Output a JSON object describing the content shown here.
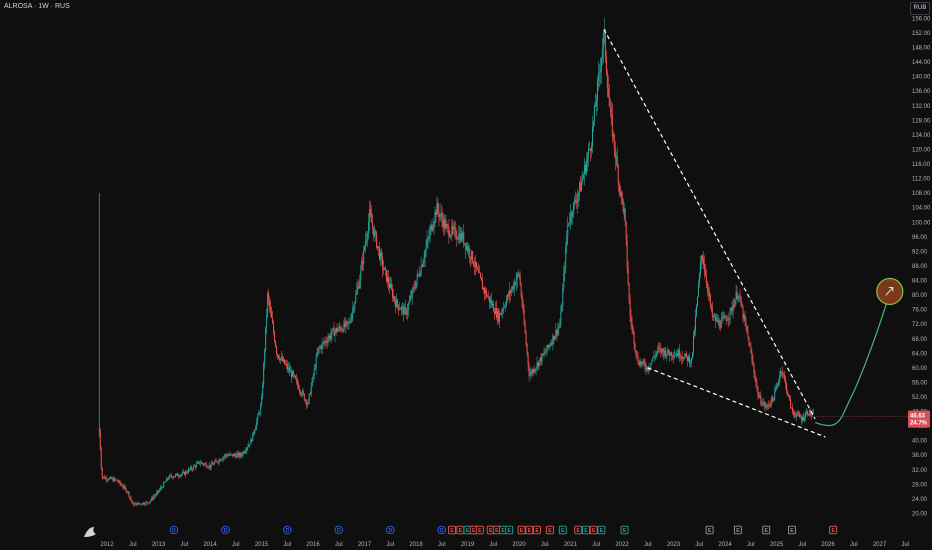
{
  "header": {
    "symbol": "ALROSA · 1W · RUS",
    "currency": "RUB"
  },
  "chart_data": {
    "type": "candlestick",
    "title": "ALROSA · 1W · RUS",
    "y_axis": {
      "position": "right",
      "range": [
        18,
        156
      ],
      "ticks": [
        20,
        24,
        28,
        32,
        36,
        40,
        44,
        48,
        52,
        56,
        60,
        64,
        68,
        72,
        76,
        80,
        84,
        88,
        92,
        96,
        100,
        104,
        108,
        112,
        116,
        120,
        124,
        128,
        132,
        136,
        140,
        144,
        148,
        152,
        156
      ],
      "tick_labels": [
        "20.00",
        "24.00",
        "28.00",
        "32.00",
        "36.00",
        "40.00",
        "44.00",
        "48.00",
        "52.00",
        "56.00",
        "60.00",
        "64.00",
        "68.00",
        "72.00",
        "76.00",
        "80.00",
        "84.00",
        "88.00",
        "92.00",
        "96.00",
        "100.00",
        "104.00",
        "108.00",
        "112.00",
        "116.00",
        "120.00",
        "124.00",
        "128.00",
        "132.00",
        "136.00",
        "140.00",
        "144.00",
        "148.00",
        "152.00",
        "156.00"
      ]
    },
    "x_axis": {
      "ticks": [
        {
          "t": 2012.0,
          "label": "2012"
        },
        {
          "t": 2012.5,
          "label": "Jul"
        },
        {
          "t": 2013.0,
          "label": "2013"
        },
        {
          "t": 2013.5,
          "label": "Jul"
        },
        {
          "t": 2014.0,
          "label": "2014"
        },
        {
          "t": 2014.5,
          "label": "Jul"
        },
        {
          "t": 2015.0,
          "label": "2015"
        },
        {
          "t": 2015.5,
          "label": "Jul"
        },
        {
          "t": 2016.0,
          "label": "2016"
        },
        {
          "t": 2016.5,
          "label": "Jul"
        },
        {
          "t": 2017.0,
          "label": "2017"
        },
        {
          "t": 2017.5,
          "label": "Jul"
        },
        {
          "t": 2018.0,
          "label": "2018"
        },
        {
          "t": 2018.5,
          "label": "Jul"
        },
        {
          "t": 2019.0,
          "label": "2019"
        },
        {
          "t": 2019.5,
          "label": "Jul"
        },
        {
          "t": 2020.0,
          "label": "2020"
        },
        {
          "t": 2020.5,
          "label": "Jul"
        },
        {
          "t": 2021.0,
          "label": "2021"
        },
        {
          "t": 2021.5,
          "label": "Jul"
        },
        {
          "t": 2022.0,
          "label": "2022"
        },
        {
          "t": 2022.5,
          "label": "Jul"
        },
        {
          "t": 2023.0,
          "label": "2023"
        },
        {
          "t": 2023.5,
          "label": "Jul"
        },
        {
          "t": 2024.0,
          "label": "2024"
        },
        {
          "t": 2024.5,
          "label": "Jul"
        },
        {
          "t": 2025.0,
          "label": "2025"
        },
        {
          "t": 2025.5,
          "label": "Jul"
        },
        {
          "t": 2026.0,
          "label": "2026"
        },
        {
          "t": 2026.5,
          "label": "Jul"
        },
        {
          "t": 2027.0,
          "label": "2027"
        },
        {
          "t": 2027.5,
          "label": "Jul"
        }
      ]
    },
    "price_keypoints": [
      [
        2011.85,
        43
      ],
      [
        2011.9,
        30
      ],
      [
        2012.2,
        29
      ],
      [
        2012.4,
        26
      ],
      [
        2012.5,
        22.5
      ],
      [
        2012.8,
        23
      ],
      [
        2013.0,
        26
      ],
      [
        2013.2,
        30
      ],
      [
        2013.5,
        31
      ],
      [
        2013.8,
        34
      ],
      [
        2014.0,
        33
      ],
      [
        2014.3,
        36
      ],
      [
        2014.6,
        36
      ],
      [
        2014.8,
        40
      ],
      [
        2015.0,
        50
      ],
      [
        2015.12,
        80
      ],
      [
        2015.3,
        64
      ],
      [
        2015.6,
        58
      ],
      [
        2015.9,
        50
      ],
      [
        2016.1,
        65
      ],
      [
        2016.4,
        70
      ],
      [
        2016.7,
        72
      ],
      [
        2016.9,
        84
      ],
      [
        2017.1,
        102
      ],
      [
        2017.35,
        88
      ],
      [
        2017.6,
        78
      ],
      [
        2017.8,
        75
      ],
      [
        2018.1,
        88
      ],
      [
        2018.4,
        104
      ],
      [
        2018.6,
        98
      ],
      [
        2018.9,
        96
      ],
      [
        2019.1,
        90
      ],
      [
        2019.3,
        82
      ],
      [
        2019.6,
        74
      ],
      [
        2019.8,
        80
      ],
      [
        2020.0,
        86
      ],
      [
        2020.2,
        58
      ],
      [
        2020.5,
        64
      ],
      [
        2020.8,
        72
      ],
      [
        2020.95,
        100
      ],
      [
        2021.2,
        110
      ],
      [
        2021.4,
        122
      ],
      [
        2021.55,
        140
      ],
      [
        2021.65,
        152
      ],
      [
        2021.75,
        132
      ],
      [
        2021.95,
        110
      ],
      [
        2022.05,
        102
      ],
      [
        2022.15,
        75
      ],
      [
        2022.3,
        62
      ],
      [
        2022.5,
        60
      ],
      [
        2022.7,
        65
      ],
      [
        2022.9,
        64
      ],
      [
        2023.1,
        64
      ],
      [
        2023.35,
        62
      ],
      [
        2023.55,
        92
      ],
      [
        2023.75,
        74
      ],
      [
        2023.9,
        72
      ],
      [
        2024.1,
        75
      ],
      [
        2024.25,
        81
      ],
      [
        2024.45,
        68
      ],
      [
        2024.65,
        52
      ],
      [
        2024.8,
        49
      ],
      [
        2024.95,
        52
      ],
      [
        2025.1,
        60
      ],
      [
        2025.3,
        48
      ],
      [
        2025.5,
        46
      ],
      [
        2025.6,
        48
      ],
      [
        2025.72,
        46.6
      ]
    ],
    "trendlines": [
      {
        "name": "upper-resistance",
        "style": "dashed",
        "from": [
          2021.65,
          153
        ],
        "to": [
          2025.75,
          46
        ]
      },
      {
        "name": "lower-support",
        "style": "dashed",
        "from": [
          2022.5,
          60
        ],
        "to": [
          2025.95,
          41
        ]
      }
    ],
    "projection": {
      "style": "curve",
      "points": [
        [
          2025.75,
          45
        ],
        [
          2026.0,
          44
        ],
        [
          2026.45,
          52
        ],
        [
          2026.85,
          68
        ],
        [
          2027.2,
          81
        ]
      ],
      "target_marker": [
        2027.2,
        81
      ]
    },
    "last_price": {
      "value": 46.6,
      "label": "46.63",
      "change_label": "24.7%",
      "color": "#d84f57"
    },
    "events": [
      {
        "t": 2013.3,
        "type": "D"
      },
      {
        "t": 2014.3,
        "type": "D"
      },
      {
        "t": 2015.5,
        "type": "D"
      },
      {
        "t": 2016.5,
        "type": "D"
      },
      {
        "t": 2017.5,
        "type": "D"
      },
      {
        "t": 2018.5,
        "type": "D"
      },
      {
        "t": 2018.7,
        "type": "E"
      },
      {
        "t": 2018.86,
        "type": "E"
      },
      {
        "t": 2019.0,
        "type": "E"
      },
      {
        "t": 2019.12,
        "type": "E"
      },
      {
        "t": 2019.24,
        "type": "E"
      },
      {
        "t": 2019.45,
        "type": "E"
      },
      {
        "t": 2019.57,
        "type": "E"
      },
      {
        "t": 2019.69,
        "type": "E"
      },
      {
        "t": 2019.81,
        "type": "E"
      },
      {
        "t": 2020.05,
        "type": "E"
      },
      {
        "t": 2020.2,
        "type": "E"
      },
      {
        "t": 2020.35,
        "type": "E"
      },
      {
        "t": 2020.6,
        "type": "E"
      },
      {
        "t": 2020.85,
        "type": "E"
      },
      {
        "t": 2021.15,
        "type": "E"
      },
      {
        "t": 2021.3,
        "type": "E"
      },
      {
        "t": 2021.45,
        "type": "E"
      },
      {
        "t": 2021.6,
        "type": "E"
      },
      {
        "t": 2022.05,
        "type": "E"
      },
      {
        "t": 2023.7,
        "type": "E"
      },
      {
        "t": 2024.25,
        "type": "E"
      },
      {
        "t": 2024.8,
        "type": "E"
      },
      {
        "t": 2025.3,
        "type": "E"
      },
      {
        "t": 2026.1,
        "type": "E"
      }
    ],
    "colors": {
      "up": "#26a69a",
      "down": "#ef5350",
      "projection": "#4caf82",
      "target_fill": "#7a3a1a",
      "background": "#0f0f0f"
    }
  }
}
